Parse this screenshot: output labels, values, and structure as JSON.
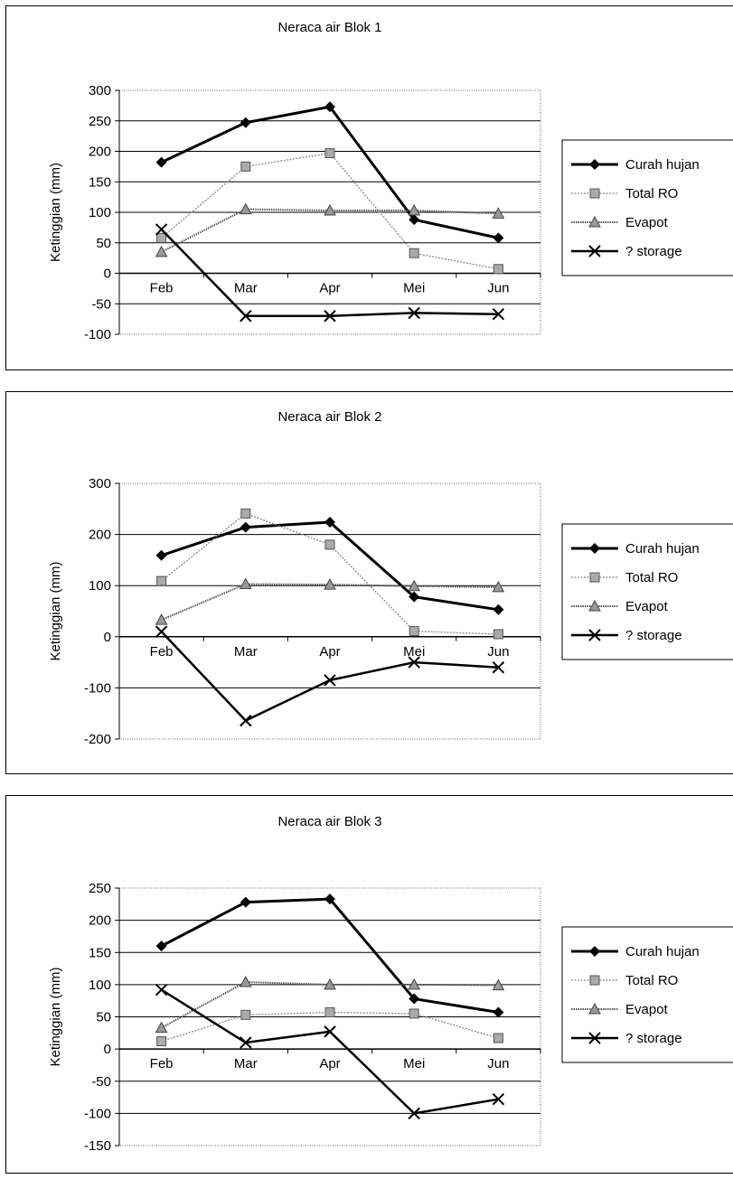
{
  "chart_data": [
    {
      "type": "line",
      "title": "Neraca air Blok 1",
      "ylabel": "Ketinggian (mm)",
      "xlabel": "",
      "categories": [
        "Feb",
        "Mar",
        "Apr",
        "Mei",
        "Jun"
      ],
      "ylim": [
        -100,
        300
      ],
      "yticks": [
        300,
        250,
        200,
        150,
        100,
        50,
        0,
        -50,
        -100
      ],
      "grid": true,
      "legend_position": "right",
      "series": [
        {
          "name": "Curah hujan",
          "marker": "diamond",
          "values": [
            182,
            247,
            273,
            88,
            58
          ]
        },
        {
          "name": "Total RO",
          "marker": "square",
          "values": [
            58,
            175,
            197,
            33,
            7
          ]
        },
        {
          "name": "Evapot",
          "marker": "triangle",
          "values": [
            35,
            105,
            103,
            103,
            98
          ]
        },
        {
          "name": "? storage",
          "marker": "x",
          "values": [
            72,
            -70,
            -70,
            -65,
            -67
          ]
        }
      ]
    },
    {
      "type": "line",
      "title": "Neraca air Blok 2",
      "ylabel": "Ketinggian (mm)",
      "xlabel": "",
      "categories": [
        "Feb",
        "Mar",
        "Apr",
        "Mei",
        "Jun"
      ],
      "ylim": [
        -200,
        300
      ],
      "yticks": [
        300,
        200,
        100,
        0,
        -100,
        -200
      ],
      "grid": true,
      "legend_position": "right",
      "series": [
        {
          "name": "Curah hujan",
          "marker": "diamond",
          "values": [
            159,
            214,
            224,
            78,
            53
          ]
        },
        {
          "name": "Total RO",
          "marker": "square",
          "values": [
            109,
            241,
            180,
            11,
            5
          ]
        },
        {
          "name": "Evapot",
          "marker": "triangle",
          "values": [
            33,
            103,
            102,
            99,
            97
          ]
        },
        {
          "name": "? storage",
          "marker": "x",
          "values": [
            10,
            -164,
            -85,
            -50,
            -60
          ]
        }
      ]
    },
    {
      "type": "line",
      "title": "Neraca air Blok 3",
      "ylabel": "Ketinggian (mm)",
      "xlabel": "",
      "categories": [
        "Feb",
        "Mar",
        "Apr",
        "Mei",
        "Jun"
      ],
      "ylim": [
        -150,
        250
      ],
      "yticks": [
        250,
        200,
        150,
        100,
        50,
        0,
        -50,
        -100,
        -150
      ],
      "grid": true,
      "legend_position": "right",
      "series": [
        {
          "name": "Curah hujan",
          "marker": "diamond",
          "values": [
            160,
            228,
            233,
            78,
            57
          ]
        },
        {
          "name": "Total RO",
          "marker": "square",
          "values": [
            12,
            53,
            57,
            55,
            17
          ]
        },
        {
          "name": "Evapot",
          "marker": "triangle",
          "values": [
            33,
            104,
            100,
            100,
            99
          ]
        },
        {
          "name": "? storage",
          "marker": "x",
          "values": [
            92,
            10,
            27,
            -100,
            -78
          ]
        }
      ]
    }
  ]
}
